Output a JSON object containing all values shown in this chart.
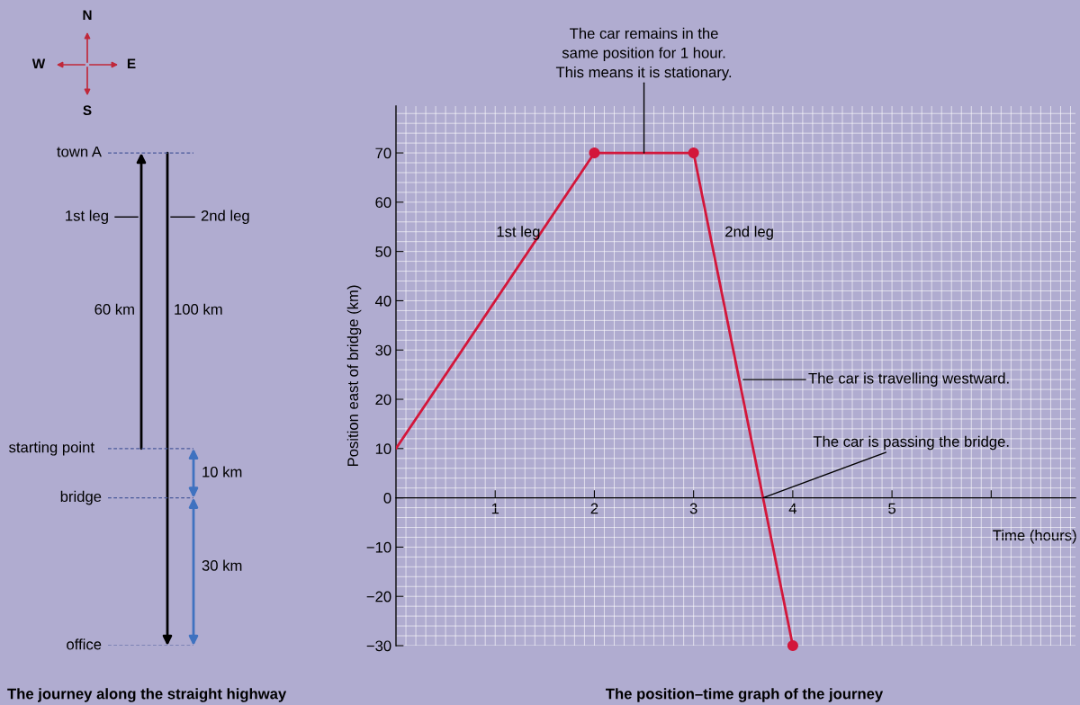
{
  "chart_data": [
    {
      "type": "other",
      "title": "The journey along the straight highway",
      "annotations": [
        "N",
        "E",
        "S",
        "W",
        "town A",
        "1st leg",
        "2nd leg",
        "60 km",
        "100 km",
        "starting point",
        "10 km",
        "bridge",
        "30 km",
        "office"
      ]
    },
    {
      "type": "line",
      "title": "The position–time graph of the journey",
      "xlabel": "Time (hours)",
      "ylabel": "Position east of bridge (km)",
      "series": [
        {
          "type": "line",
          "color": "#d3163a",
          "x": [
            0,
            2,
            3,
            4
          ],
          "values": [
            10,
            70,
            70,
            -30
          ],
          "marker": "none"
        },
        {
          "type": "scatter",
          "color": "#d3163a",
          "x": [
            2,
            3,
            4
          ],
          "values": [
            70,
            70,
            -30
          ],
          "marker": "circle"
        }
      ],
      "xlim": [
        0,
        6.85
      ],
      "ylim": [
        -30,
        79.5
      ],
      "xticks": [
        1,
        2,
        3,
        4,
        5,
        {
          "value": 6,
          "label": null
        }
      ],
      "yticks": [
        -30,
        -20,
        -10,
        0,
        10,
        20,
        30,
        40,
        50,
        60,
        70
      ],
      "grid": true,
      "annotations": [
        {
          "text": "The car remains in the\nsame position for 1 hour.\nThis means it is stationary.",
          "x": 2.5,
          "y": 70
        },
        "1st leg",
        "2nd leg",
        {
          "text": "The car is travelling westward.",
          "x": 3.5,
          "y": 24
        },
        {
          "text": "The car is passing the bridge.",
          "x": 3.7,
          "y": 0
        }
      ]
    }
  ]
}
